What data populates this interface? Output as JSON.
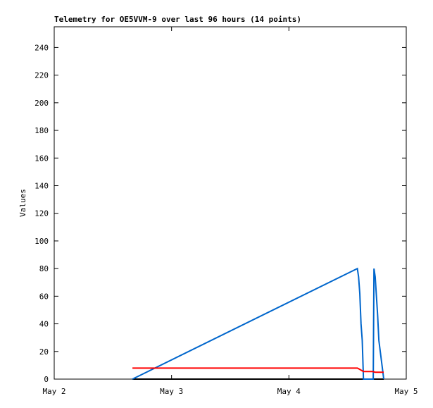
{
  "chart_data": {
    "type": "line",
    "title": "Telemetry for OE5VVM-9 over last 96 hours (14 points)",
    "ylabel": "Values",
    "x": [
      16.0,
      62.0,
      62.25,
      62.5,
      62.75,
      63.0,
      63.25,
      65.25,
      65.4,
      65.65,
      65.9,
      66.15,
      66.4,
      67.4
    ],
    "xlim": [
      0,
      72
    ],
    "xticks": [
      {
        "value": 0,
        "label": "May 2"
      },
      {
        "value": 24,
        "label": "May 3"
      },
      {
        "value": 48,
        "label": "May 4"
      },
      {
        "value": 72,
        "label": "May 5"
      }
    ],
    "ylim": [
      0,
      255
    ],
    "yticks": [
      0,
      20,
      40,
      60,
      80,
      100,
      120,
      140,
      160,
      180,
      200,
      220,
      240
    ],
    "grid": false,
    "series": [
      {
        "color": "#000000",
        "values": [
          0,
          0,
          0,
          0,
          0,
          0,
          0,
          0,
          0,
          0,
          0,
          0,
          0,
          0
        ]
      },
      {
        "color": "#0066cc",
        "values": [
          0,
          80,
          74,
          62,
          40,
          28,
          0,
          0,
          80,
          74,
          60,
          46,
          28,
          0
        ]
      },
      {
        "color": "#ff0000",
        "values": [
          8,
          8,
          7.5,
          7,
          6.5,
          6,
          5.5,
          5.5,
          5.2,
          5,
          5,
          5,
          5,
          5
        ]
      }
    ]
  }
}
